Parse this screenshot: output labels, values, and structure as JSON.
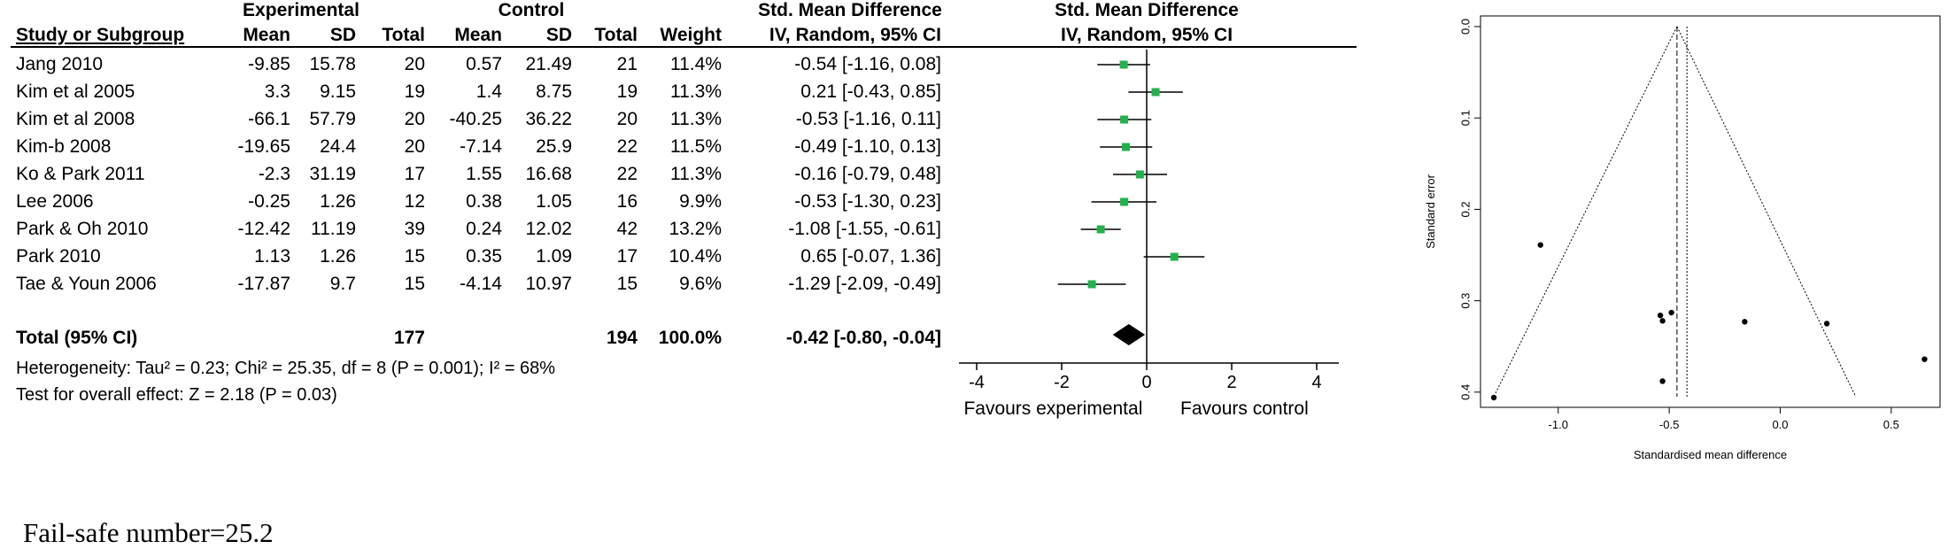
{
  "headers": {
    "group_experimental": "Experimental",
    "group_control": "Control",
    "smd_title": "Std. Mean Difference",
    "smd_title_plot": "Std. Mean Difference",
    "columns": [
      "Study or Subgroup",
      "Mean",
      "SD",
      "Total",
      "Mean",
      "SD",
      "Total",
      "Weight"
    ],
    "smd_method": "IV, Random, 95% CI",
    "smd_method_plot": "IV, Random, 95% CI"
  },
  "studies": [
    {
      "name": "Jang 2010",
      "exp_mean": "-9.85",
      "exp_sd": "15.78",
      "exp_total": "20",
      "ctl_mean": "0.57",
      "ctl_sd": "21.49",
      "ctl_total": "21",
      "weight": "11.4%",
      "ci_text": "-0.54 [-1.16, 0.08]"
    },
    {
      "name": "Kim et al 2005",
      "exp_mean": "3.3",
      "exp_sd": "9.15",
      "exp_total": "19",
      "ctl_mean": "1.4",
      "ctl_sd": "8.75",
      "ctl_total": "19",
      "weight": "11.3%",
      "ci_text": "0.21 [-0.43, 0.85]"
    },
    {
      "name": "Kim et al 2008",
      "exp_mean": "-66.1",
      "exp_sd": "57.79",
      "exp_total": "20",
      "ctl_mean": "-40.25",
      "ctl_sd": "36.22",
      "ctl_total": "20",
      "weight": "11.3%",
      "ci_text": "-0.53 [-1.16, 0.11]"
    },
    {
      "name": "Kim-b 2008",
      "exp_mean": "-19.65",
      "exp_sd": "24.4",
      "exp_total": "20",
      "ctl_mean": "-7.14",
      "ctl_sd": "25.9",
      "ctl_total": "22",
      "weight": "11.5%",
      "ci_text": "-0.49 [-1.10, 0.13]"
    },
    {
      "name": "Ko & Park 2011",
      "exp_mean": "-2.3",
      "exp_sd": "31.19",
      "exp_total": "17",
      "ctl_mean": "1.55",
      "ctl_sd": "16.68",
      "ctl_total": "22",
      "weight": "11.3%",
      "ci_text": "-0.16 [-0.79, 0.48]"
    },
    {
      "name": "Lee 2006",
      "exp_mean": "-0.25",
      "exp_sd": "1.26",
      "exp_total": "12",
      "ctl_mean": "0.38",
      "ctl_sd": "1.05",
      "ctl_total": "16",
      "weight": "9.9%",
      "ci_text": "-0.53 [-1.30, 0.23]"
    },
    {
      "name": "Park & Oh 2010",
      "exp_mean": "-12.42",
      "exp_sd": "11.19",
      "exp_total": "39",
      "ctl_mean": "0.24",
      "ctl_sd": "12.02",
      "ctl_total": "42",
      "weight": "13.2%",
      "ci_text": "-1.08 [-1.55, -0.61]"
    },
    {
      "name": "Park 2010",
      "exp_mean": "1.13",
      "exp_sd": "1.26",
      "exp_total": "15",
      "ctl_mean": "0.35",
      "ctl_sd": "1.09",
      "ctl_total": "17",
      "weight": "10.4%",
      "ci_text": "0.65 [-0.07, 1.36]"
    },
    {
      "name": "Tae & Youn 2006",
      "exp_mean": "-17.87",
      "exp_sd": "9.7",
      "exp_total": "15",
      "ctl_mean": "-4.14",
      "ctl_sd": "10.97",
      "ctl_total": "15",
      "weight": "9.6%",
      "ci_text": "-1.29 [-2.09, -0.49]"
    }
  ],
  "total": {
    "label": "Total (95% CI)",
    "exp_total": "177",
    "ctl_total": "194",
    "weight": "100.0%",
    "ci_text": "-0.42 [-0.80, -0.04]"
  },
  "heterogeneity": "Heterogeneity: Tau² = 0.23; Chi² = 25.35, df = 8 (P = 0.001); I² = 68%",
  "overall_effect": "Test for overall effect: Z = 2.18 (P = 0.03)",
  "forest_labels": {
    "favours_left": "Favours experimental",
    "favours_right": "Favours control"
  },
  "fail_safe": "Fail-safe number=25.2",
  "chart_data": [
    {
      "type": "forest",
      "title": "Std. Mean Difference IV, Random, 95% CI",
      "xlim": [
        -4,
        4
      ],
      "xticks": [
        -4,
        -2,
        0,
        2,
        4
      ],
      "studies": [
        "Jang 2010",
        "Kim et al 2005",
        "Kim et al 2008",
        "Kim-b 2008",
        "Ko & Park 2011",
        "Lee 2006",
        "Park & Oh 2010",
        "Park 2010",
        "Tae & Youn 2006"
      ],
      "estimates": [
        -0.54,
        0.21,
        -0.53,
        -0.49,
        -0.16,
        -0.53,
        -1.08,
        0.65,
        -1.29
      ],
      "ci_lower": [
        -1.16,
        -0.43,
        -1.16,
        -1.1,
        -0.79,
        -1.3,
        -1.55,
        -0.07,
        -2.09
      ],
      "ci_upper": [
        0.08,
        0.85,
        0.11,
        0.13,
        0.48,
        0.23,
        -0.61,
        1.36,
        -0.49
      ],
      "pooled": {
        "estimate": -0.42,
        "ci_lower": -0.8,
        "ci_upper": -0.04
      },
      "marker_color": "#22b14c"
    },
    {
      "type": "scatter",
      "xlabel": "Standardised mean difference",
      "ylabel": "Standard error",
      "xlim": [
        -1.35,
        0.72
      ],
      "ylim": [
        0,
        0.405
      ],
      "y_reversed": true,
      "xticks": [
        -1.0,
        -0.5,
        0.0,
        0.5
      ],
      "xtick_labels": [
        "-1.0",
        "-0.5",
        "0.0",
        "0.5"
      ],
      "yticks": [
        0.0,
        0.1,
        0.2,
        0.3,
        0.4
      ],
      "ytick_labels": [
        "0.0",
        "0.1",
        "0.2",
        "0.3",
        "0.4"
      ],
      "points": [
        {
          "x": -0.54,
          "y": 0.316
        },
        {
          "x": 0.21,
          "y": 0.325
        },
        {
          "x": -0.53,
          "y": 0.322
        },
        {
          "x": -0.49,
          "y": 0.313
        },
        {
          "x": -0.16,
          "y": 0.323
        },
        {
          "x": -0.53,
          "y": 0.388
        },
        {
          "x": -1.08,
          "y": 0.239
        },
        {
          "x": 0.65,
          "y": 0.364
        },
        {
          "x": -1.29,
          "y": 0.406
        }
      ],
      "fixed_effect": -0.465,
      "random_effect": -0.42,
      "funnel_apex": {
        "x": -0.465,
        "y": 0.0
      },
      "funnel_bottom": {
        "left": -1.29,
        "right": 0.34,
        "y": 0.405
      }
    }
  ]
}
